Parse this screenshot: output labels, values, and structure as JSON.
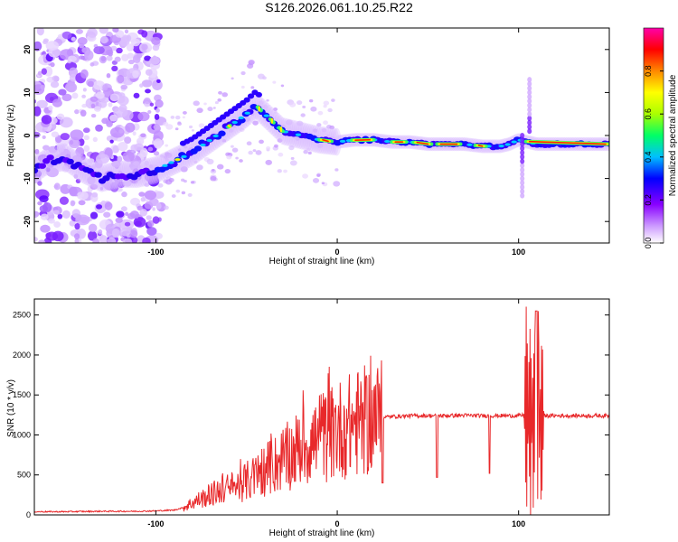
{
  "title": "S126.2026.061.10.25.R22",
  "chart_data": [
    {
      "type": "heatmap",
      "xlabel": "Height of straight line (km)",
      "ylabel": "Frequency (Hz)",
      "xlim": [
        -167,
        150
      ],
      "ylim": [
        -25,
        25
      ],
      "xticks": [
        -100,
        0,
        100
      ],
      "yticks": [
        -20,
        -10,
        0,
        10,
        20
      ],
      "colorbar": {
        "label": "Normalized spectral amplitude",
        "ticks": [
          0.0,
          0.2,
          0.4,
          0.6,
          0.8
        ],
        "range": [
          0,
          1
        ],
        "colors": [
          "#ffffff",
          "#cc99ff",
          "#8800ff",
          "#0000ff",
          "#00ccff",
          "#00ff66",
          "#aaff00",
          "#ffff00",
          "#ff8800",
          "#ff0000",
          "#ff00aa"
        ]
      },
      "ridge": {
        "x": [
          -167,
          -160,
          -150,
          -140,
          -130,
          -120,
          -110,
          -100,
          -90,
          -80,
          -70,
          -60,
          -50,
          -45,
          -40,
          -35,
          -30,
          -20,
          -10,
          0,
          10,
          20,
          30,
          40,
          50,
          60,
          70,
          80,
          90,
          95,
          100,
          110,
          120,
          130,
          140,
          150
        ],
        "frequency": [
          -8,
          -6,
          -5,
          -8,
          -10,
          -9,
          -9,
          -8,
          -6,
          -4,
          -1,
          2,
          5,
          7,
          5,
          3,
          1,
          0,
          -1,
          -1.5,
          -1,
          -1,
          -1.5,
          -1.5,
          -2,
          -2,
          -2,
          -2.5,
          -2.5,
          -2,
          -1,
          -2,
          -2,
          -2,
          -2,
          -2
        ]
      }
    },
    {
      "type": "line",
      "xlabel": "Height of straight line (km)",
      "ylabel": "SNR (10 * v/v)",
      "xlim": [
        -167,
        150
      ],
      "ylim": [
        0,
        2700
      ],
      "xticks": [
        -100,
        0,
        100
      ],
      "yticks": [
        0,
        500,
        1000,
        1500,
        2000,
        2500
      ],
      "series": [
        {
          "name": "SNR",
          "color": "#e8282a",
          "x": [
            -167,
            -150,
            -130,
            -110,
            -100,
            -90,
            -85,
            -80,
            -75,
            -70,
            -65,
            -60,
            -55,
            -50,
            -45,
            -40,
            -35,
            -30,
            -25,
            -20,
            -15,
            -10,
            -5,
            0,
            5,
            10,
            15,
            20,
            25,
            30,
            40,
            50,
            60,
            70,
            80,
            90,
            100,
            105,
            110,
            115,
            120,
            130,
            140,
            150
          ],
          "values": [
            40,
            40,
            45,
            45,
            50,
            60,
            90,
            150,
            200,
            250,
            300,
            330,
            360,
            420,
            480,
            560,
            620,
            700,
            760,
            850,
            900,
            960,
            1000,
            1060,
            1100,
            1140,
            1170,
            1200,
            1220,
            1230,
            1240,
            1240,
            1240,
            1245,
            1240,
            1240,
            1240,
            1250,
            1250,
            1240,
            1240,
            1240,
            1240,
            1240
          ]
        }
      ]
    }
  ]
}
